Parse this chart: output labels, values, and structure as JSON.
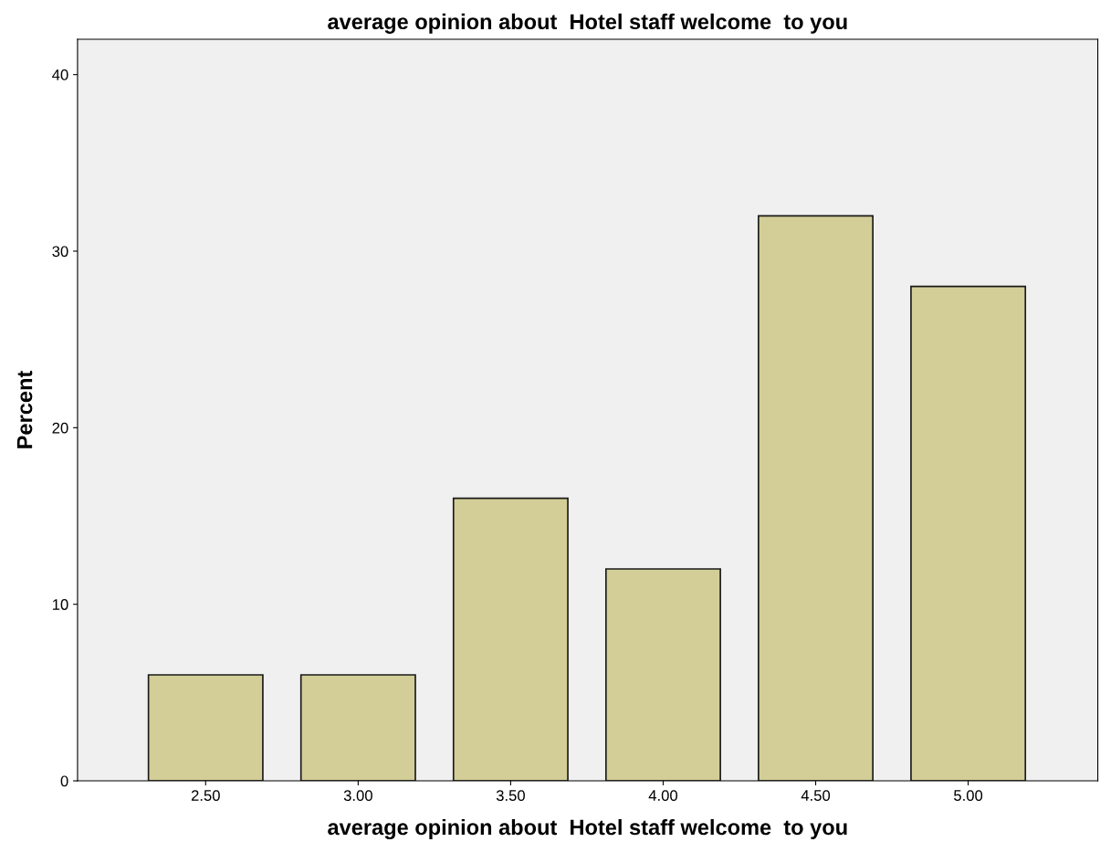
{
  "chart_data": {
    "type": "bar",
    "title": "average opinion about  Hotel staff welcome  to you",
    "xlabel": "average opinion about  Hotel staff welcome  to you",
    "ylabel": "Percent",
    "categories": [
      "2.50",
      "3.00",
      "3.50",
      "4.00",
      "4.50",
      "5.00"
    ],
    "values": [
      6,
      6,
      16,
      12,
      32,
      28
    ],
    "color": "#d3ce97",
    "ylim": [
      0,
      42
    ],
    "yticks": [
      0,
      10,
      20,
      30,
      40
    ],
    "grid": false
  }
}
